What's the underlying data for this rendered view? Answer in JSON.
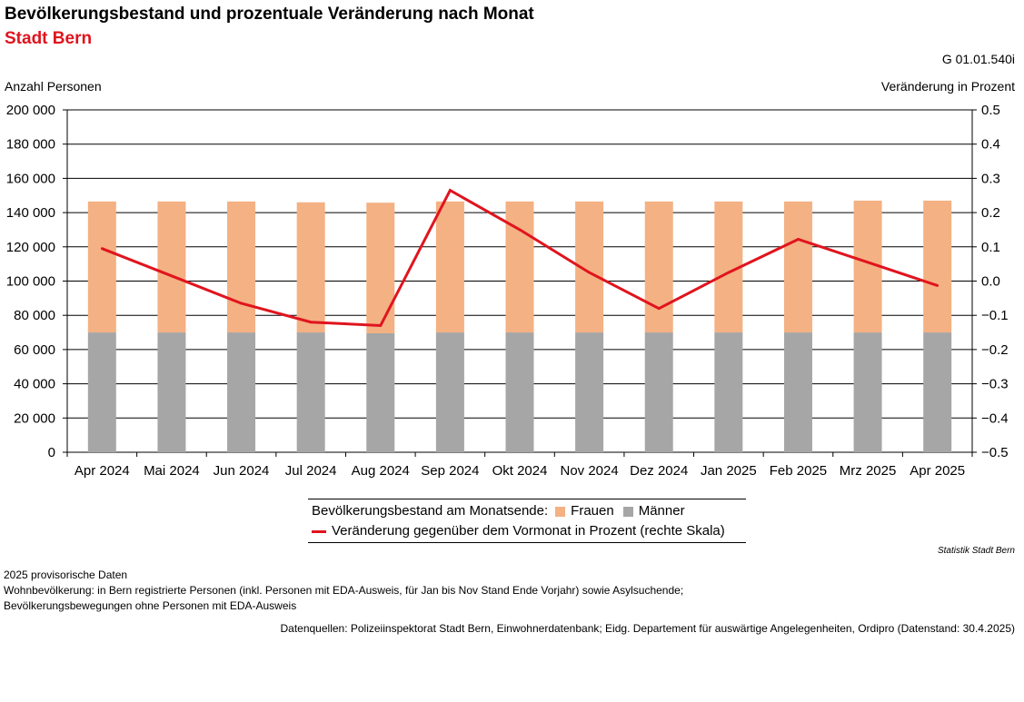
{
  "header": {
    "title": "Bevölkerungsbestand und prozentuale Veränderung nach Monat",
    "subtitle": "Stadt Bern",
    "chart_code": "G 01.01.540i"
  },
  "colors": {
    "frauen": "#f4b183",
    "maenner": "#a6a6a6",
    "line": "#e0141e",
    "subtitle": "#e0141e"
  },
  "legend": {
    "prefix": "Bevölkerungsbestand am Monatsende:",
    "frauen": "Frauen",
    "maenner": "Männer",
    "line": "Veränderung gegenüber dem Vormonat in Prozent (rechte Skala)"
  },
  "footer": {
    "source_label": "Statistik Stadt Bern",
    "notes": [
      "2025 provisorische Daten",
      "Wohnbevölkerung: in Bern registrierte Personen (inkl. Personen mit EDA-Ausweis, für Jan bis Nov Stand Ende Vorjahr) sowie Asylsuchende;",
      "Bevölkerungsbewegungen ohne Personen mit EDA-Ausweis"
    ],
    "datasource": "Datenquellen: Polizeiinspektorat Stadt Bern, Einwohnerdatenbank; Eidg. Departement für auswärtige Angelegenheiten, Ordipro (Datenstand: 30.4.2025)"
  },
  "chart_data": {
    "type": "bar",
    "stacked": true,
    "categories": [
      "Apr 2024",
      "Mai 2024",
      "Jun 2024",
      "Jul 2024",
      "Aug 2024",
      "Sep 2024",
      "Okt 2024",
      "Nov 2024",
      "Dez 2024",
      "Jan 2025",
      "Feb 2025",
      "Mrz 2025",
      "Apr 2025"
    ],
    "series": [
      {
        "name": "Männer",
        "kind": "bar",
        "axis": "left",
        "values": [
          70000,
          70000,
          70000,
          70000,
          69500,
          70000,
          70000,
          70000,
          70000,
          70000,
          70000,
          70000,
          70000
        ]
      },
      {
        "name": "Frauen",
        "kind": "bar",
        "axis": "left",
        "values": [
          76500,
          76500,
          76500,
          76000,
          76300,
          76500,
          76500,
          76500,
          76500,
          76500,
          76500,
          77000,
          77000
        ]
      },
      {
        "name": "Veränderung gegenüber dem Vormonat in Prozent (rechte Skala)",
        "kind": "line",
        "axis": "right",
        "values": [
          0.095,
          0.015,
          -0.065,
          -0.12,
          -0.13,
          0.265,
          0.15,
          0.025,
          -0.08,
          0.025,
          0.122,
          0.055,
          -0.013
        ]
      }
    ],
    "ylabel": "Anzahl Personen",
    "ylabel_right": "Veränderung in Prozent",
    "ylim": [
      0,
      200000
    ],
    "ylim_right": [
      -0.5,
      0.5
    ],
    "yticks": [
      "0",
      "20 000",
      "40 000",
      "60 000",
      "80 000",
      "100 000",
      "120 000",
      "140 000",
      "160 000",
      "180 000",
      "200 000"
    ],
    "yticks_right": [
      "−0.5",
      "−0.4",
      "−0.3",
      "−0.2",
      "−0.1",
      "0.0",
      "0.1",
      "0.2",
      "0.3",
      "0.4",
      "0.5"
    ],
    "grid": true,
    "legend_position": "bottom"
  }
}
